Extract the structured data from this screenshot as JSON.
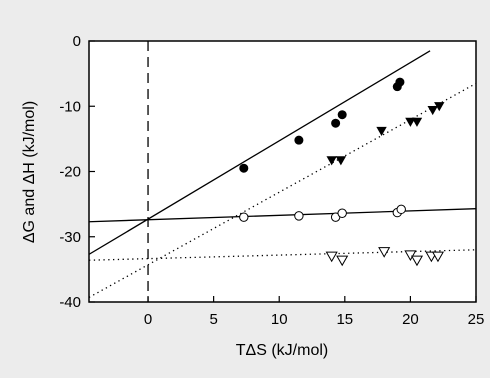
{
  "colors": {
    "background": "#ececec",
    "plot_background": "#ffffff",
    "ink": "#000000"
  },
  "chart_data": {
    "type": "scatter",
    "xlabel": "TΔS (kJ/mol)",
    "ylabel": "ΔG and ΔH (kJ/mol)",
    "xlim": [
      -4.5,
      25
    ],
    "ylim": [
      -40,
      0
    ],
    "x_ticks": [
      0,
      5,
      10,
      15,
      20,
      25
    ],
    "y_ticks": [
      0,
      -10,
      -20,
      -30,
      -40
    ],
    "x_tick_labels": [
      "0",
      "5",
      "10",
      "15",
      "20",
      "25"
    ],
    "y_tick_labels": [
      "0",
      "-10",
      "-20",
      "-30",
      "-40"
    ],
    "grid": false,
    "legend": "none",
    "series": [
      {
        "marker": "filled-circle",
        "points": [
          [
            7.3,
            -19.5
          ],
          [
            11.5,
            -15.2
          ],
          [
            14.3,
            -12.6
          ],
          [
            14.8,
            -11.3
          ],
          [
            19.0,
            -7.0
          ],
          [
            19.2,
            -6.3
          ]
        ]
      },
      {
        "marker": "filled-triangle-down",
        "points": [
          [
            14.0,
            -18.3
          ],
          [
            14.7,
            -18.3
          ],
          [
            17.8,
            -13.8
          ],
          [
            20.0,
            -12.4
          ],
          [
            20.5,
            -12.4
          ],
          [
            21.7,
            -10.6
          ],
          [
            22.2,
            -10.0
          ]
        ]
      },
      {
        "marker": "open-circle",
        "points": [
          [
            7.3,
            -27.0
          ],
          [
            11.5,
            -26.8
          ],
          [
            14.3,
            -27.0
          ],
          [
            14.8,
            -26.4
          ],
          [
            19.0,
            -26.3
          ],
          [
            19.3,
            -25.8
          ]
        ]
      },
      {
        "marker": "open-triangle-down",
        "points": [
          [
            14.0,
            -33.0
          ],
          [
            14.8,
            -33.6
          ],
          [
            18.0,
            -32.3
          ],
          [
            20.0,
            -32.8
          ],
          [
            20.5,
            -33.6
          ],
          [
            21.6,
            -33.0
          ],
          [
            22.1,
            -33.0
          ]
        ]
      }
    ],
    "lines": [
      {
        "style": "solid",
        "points": [
          [
            -4.5,
            -32.7
          ],
          [
            21.5,
            -1.5
          ]
        ]
      },
      {
        "style": "dotted",
        "points": [
          [
            -4.5,
            -39.3
          ],
          [
            25,
            -6.5
          ]
        ]
      },
      {
        "style": "solid",
        "points": [
          [
            -4.5,
            -27.7
          ],
          [
            25,
            -25.7
          ]
        ]
      },
      {
        "style": "dotted",
        "points": [
          [
            -4.5,
            -33.6
          ],
          [
            25,
            -32.0
          ]
        ]
      }
    ],
    "reference_lines": [
      {
        "style": "dashed",
        "orientation": "vertical",
        "x": 0
      }
    ]
  }
}
